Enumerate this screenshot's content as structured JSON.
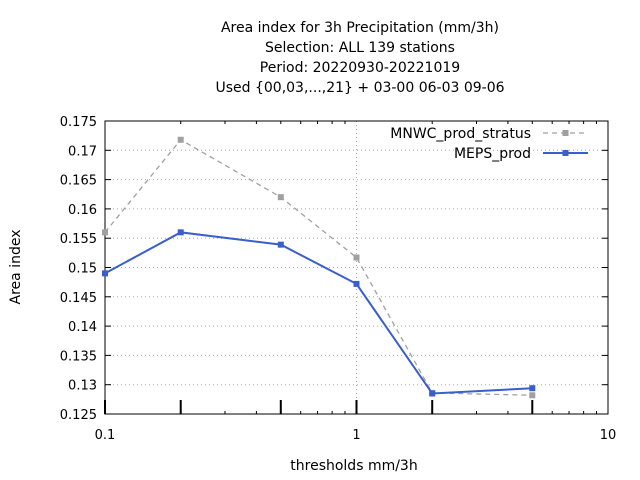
{
  "chart_data": {
    "type": "line",
    "title_lines": [
      "Area index  for 3h Precipitation (mm/3h)",
      "Selection: ALL    139 stations",
      "Period: 20220930-20221019",
      "Used {00,03,...,21} + 03-00 06-03 09-06"
    ],
    "xlabel": "thresholds mm/3h",
    "ylabel": "Area index",
    "xscale": "log",
    "xlim": [
      0.1,
      10
    ],
    "ylim": [
      0.125,
      0.175
    ],
    "x_ticks": [
      {
        "value": 0.1,
        "label": "0.1"
      },
      {
        "value": 1,
        "label": "1"
      },
      {
        "value": 10,
        "label": "10"
      }
    ],
    "y_ticks": [
      {
        "value": 0.125,
        "label": "0.125"
      },
      {
        "value": 0.13,
        "label": "0.13"
      },
      {
        "value": 0.135,
        "label": "0.135"
      },
      {
        "value": 0.14,
        "label": "0.14"
      },
      {
        "value": 0.145,
        "label": "0.145"
      },
      {
        "value": 0.15,
        "label": "0.15"
      },
      {
        "value": 0.155,
        "label": "0.155"
      },
      {
        "value": 0.16,
        "label": "0.16"
      },
      {
        "value": 0.165,
        "label": "0.165"
      },
      {
        "value": 0.17,
        "label": "0.17"
      },
      {
        "value": 0.175,
        "label": "0.175"
      }
    ],
    "threshold_marks": [
      0.1,
      0.2,
      0.5,
      1,
      2,
      5
    ],
    "grid": true,
    "legend_position": "top-right",
    "series": [
      {
        "name": "MNWC_prod_stratus",
        "color": "#a0a0a0",
        "dashed": true,
        "x": [
          0.1,
          0.2,
          0.5,
          1,
          2,
          5
        ],
        "y": [
          0.156,
          0.1718,
          0.162,
          0.1517,
          0.1286,
          0.1282
        ]
      },
      {
        "name": "MEPS_prod",
        "color": "#3a5fcd",
        "dashed": false,
        "x": [
          0.1,
          0.2,
          0.5,
          1,
          2,
          5
        ],
        "y": [
          0.149,
          0.156,
          0.1539,
          0.1472,
          0.1285,
          0.1294
        ]
      }
    ]
  }
}
